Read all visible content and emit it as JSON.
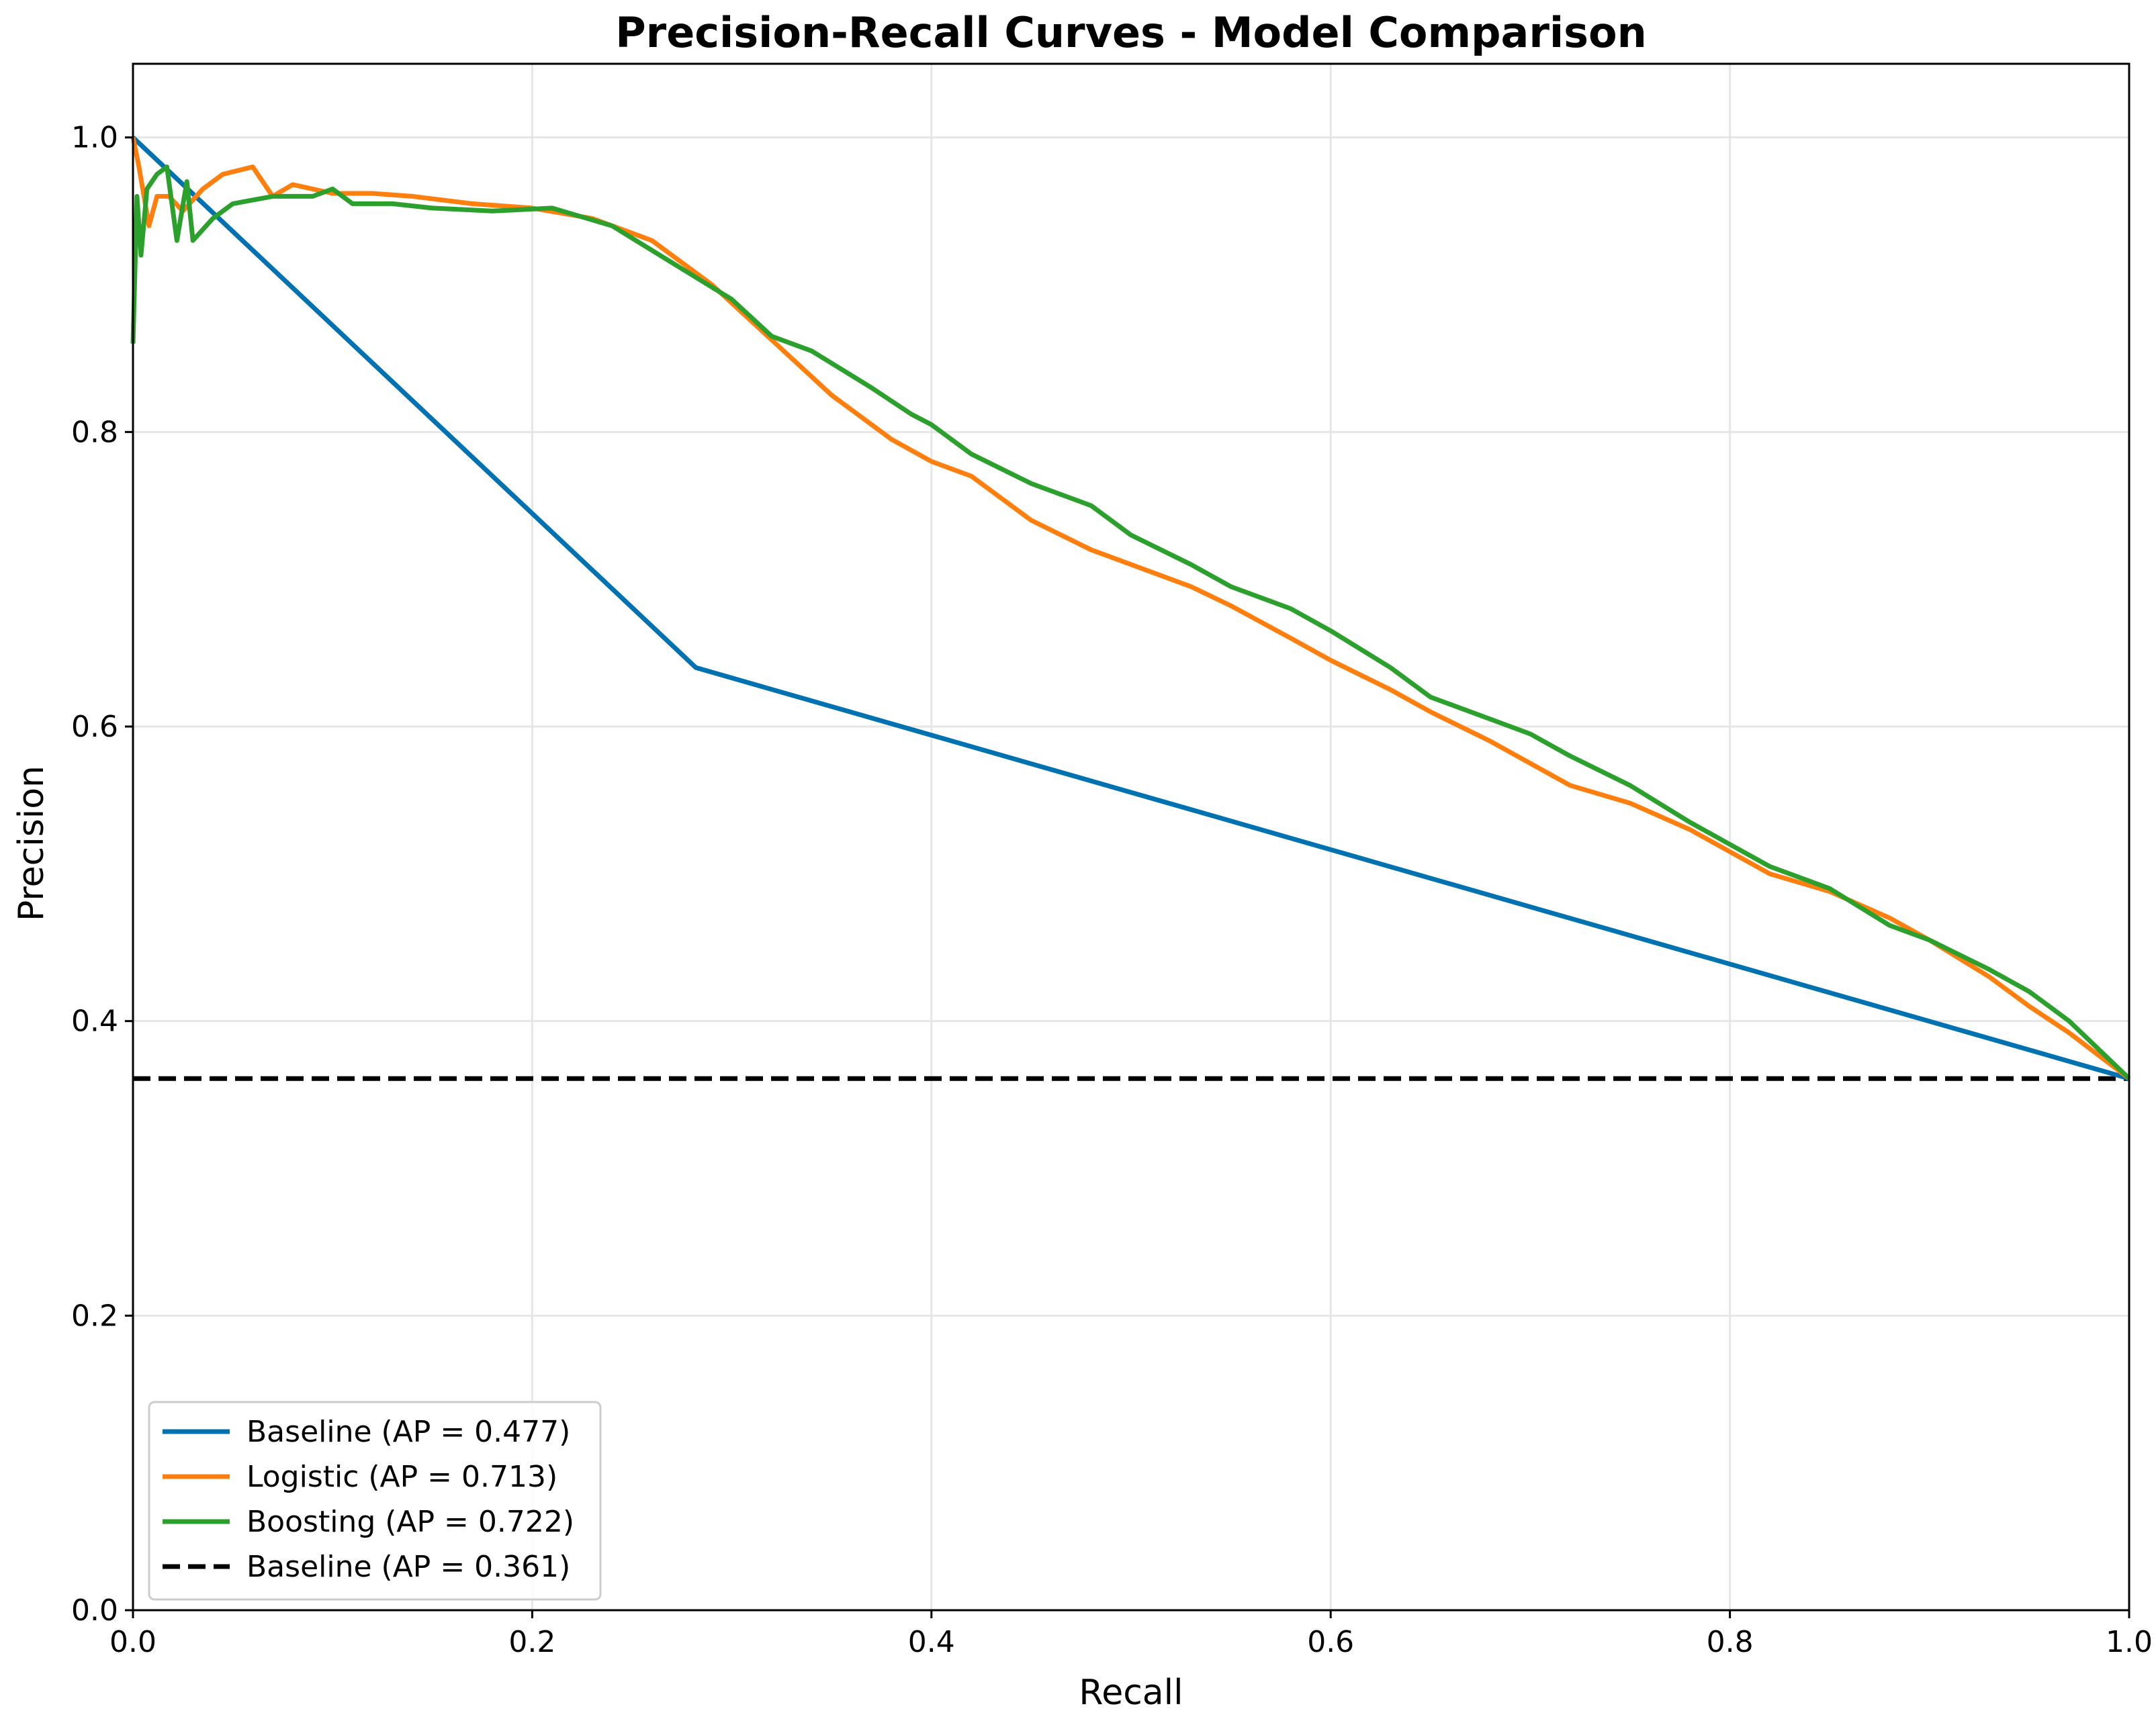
{
  "chart_data": {
    "type": "line",
    "title": "Precision-Recall Curves - Model Comparison",
    "xlabel": "Recall",
    "ylabel": "Precision",
    "xlim": [
      0.0,
      1.0
    ],
    "ylim": [
      0.0,
      1.05
    ],
    "xticks": [
      0.0,
      0.2,
      0.4,
      0.6,
      0.8,
      1.0
    ],
    "xtick_labels": [
      "0.0",
      "0.2",
      "0.4",
      "0.6",
      "0.8",
      "1.0"
    ],
    "yticks": [
      0.0,
      0.2,
      0.4,
      0.6,
      0.8,
      1.0
    ],
    "ytick_labels": [
      "0.0",
      "0.2",
      "0.4",
      "0.6",
      "0.8",
      "1.0"
    ],
    "grid": true,
    "legend_position": "lower-left",
    "series": [
      {
        "name": "Baseline (AP = 0.477)",
        "color": "#0072b2",
        "style": "solid",
        "x": [
          0.0,
          0.282,
          1.0
        ],
        "y": [
          1.0,
          0.64,
          0.361
        ]
      },
      {
        "name": "Logistic (AP = 0.713)",
        "color": "#ff7f0e",
        "style": "solid",
        "x": [
          0.0,
          0.003,
          0.008,
          0.012,
          0.018,
          0.025,
          0.035,
          0.045,
          0.06,
          0.07,
          0.08,
          0.1,
          0.12,
          0.14,
          0.17,
          0.2,
          0.23,
          0.26,
          0.29,
          0.31,
          0.33,
          0.35,
          0.38,
          0.4,
          0.42,
          0.45,
          0.48,
          0.5,
          0.53,
          0.55,
          0.58,
          0.6,
          0.63,
          0.65,
          0.68,
          0.7,
          0.72,
          0.75,
          0.78,
          0.8,
          0.82,
          0.85,
          0.88,
          0.9,
          0.93,
          0.95,
          0.97,
          1.0
        ],
        "y": [
          1.0,
          0.98,
          0.94,
          0.96,
          0.96,
          0.95,
          0.965,
          0.975,
          0.98,
          0.96,
          0.968,
          0.962,
          0.962,
          0.96,
          0.955,
          0.952,
          0.945,
          0.93,
          0.9,
          0.875,
          0.85,
          0.825,
          0.795,
          0.78,
          0.77,
          0.74,
          0.72,
          0.71,
          0.695,
          0.682,
          0.66,
          0.645,
          0.625,
          0.61,
          0.59,
          0.575,
          0.56,
          0.548,
          0.53,
          0.515,
          0.5,
          0.488,
          0.47,
          0.455,
          0.43,
          0.41,
          0.392,
          0.361
        ]
      },
      {
        "name": "Boosting (AP = 0.722)",
        "color": "#2ca02c",
        "style": "solid",
        "x": [
          0.0,
          0.002,
          0.004,
          0.007,
          0.012,
          0.017,
          0.022,
          0.027,
          0.03,
          0.04,
          0.05,
          0.07,
          0.09,
          0.1,
          0.11,
          0.13,
          0.15,
          0.18,
          0.21,
          0.24,
          0.27,
          0.3,
          0.32,
          0.34,
          0.37,
          0.39,
          0.4,
          0.42,
          0.45,
          0.48,
          0.5,
          0.53,
          0.55,
          0.58,
          0.6,
          0.63,
          0.65,
          0.68,
          0.7,
          0.72,
          0.75,
          0.78,
          0.8,
          0.82,
          0.85,
          0.88,
          0.9,
          0.93,
          0.95,
          0.97,
          1.0
        ],
        "y": [
          0.86,
          0.96,
          0.92,
          0.965,
          0.975,
          0.98,
          0.93,
          0.97,
          0.93,
          0.945,
          0.955,
          0.96,
          0.96,
          0.965,
          0.955,
          0.955,
          0.952,
          0.95,
          0.952,
          0.94,
          0.915,
          0.89,
          0.865,
          0.855,
          0.83,
          0.812,
          0.805,
          0.785,
          0.765,
          0.75,
          0.73,
          0.71,
          0.695,
          0.68,
          0.665,
          0.64,
          0.62,
          0.605,
          0.595,
          0.58,
          0.56,
          0.535,
          0.52,
          0.505,
          0.49,
          0.465,
          0.455,
          0.435,
          0.42,
          0.4,
          0.361
        ]
      },
      {
        "name": "Baseline (AP = 0.361)",
        "color": "#000000",
        "style": "dashed",
        "x": [
          0.0,
          1.0
        ],
        "y": [
          0.361,
          0.361
        ]
      }
    ]
  }
}
